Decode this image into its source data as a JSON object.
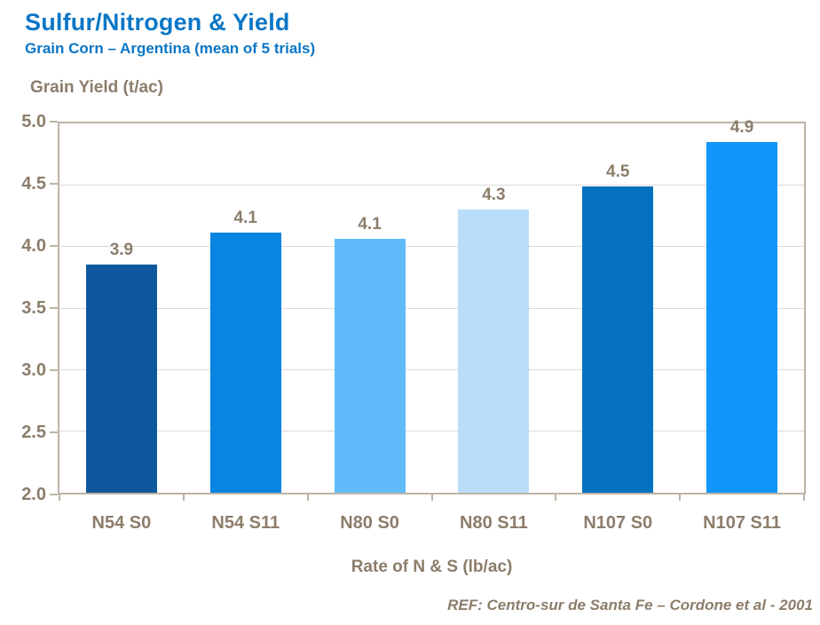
{
  "header": {
    "title": "Sulfur/Nitrogen & Yield",
    "subtitle": "Grain Corn – Argentina (mean of 5 trials)"
  },
  "chart_data": {
    "type": "bar",
    "title": "Sulfur/Nitrogen & Yield",
    "subtitle": "Grain Corn – Argentina (mean of 5 trials)",
    "y_axis_title": "Grain Yield (t/ac)",
    "x_axis_title": "Rate of N & S (lb/ac)",
    "categories": [
      "N54 S0",
      "N54 S11",
      "N80 S0",
      "N80 S11",
      "N107 S0",
      "N107 S11"
    ],
    "values": [
      3.85,
      4.11,
      4.06,
      4.3,
      4.49,
      4.85
    ],
    "data_labels": [
      "3.9",
      "4.1",
      "4.1",
      "4.3",
      "4.5",
      "4.9"
    ],
    "bar_colors": [
      "#0F589E",
      "#0884E2",
      "#63BAFB",
      "#B9DDFB",
      "#0471BE",
      "#1396FB"
    ],
    "ylim": [
      2.0,
      5.0
    ],
    "ytick_step": 0.5,
    "ytick_labels": [
      "5.0",
      "4.5",
      "4.0",
      "3.5",
      "3.0",
      "2.5",
      "2.0"
    ],
    "grid": true,
    "legend_position": "none"
  },
  "footer": {
    "reference": "REF: Centro-sur de Santa Fe – Cordone et al - 2001"
  },
  "colors": {
    "title_text": "#0B76C6",
    "axis_text": "#8C7D6B",
    "plot_border": "#BEB4A6",
    "gridline": "#D9D9D9",
    "background": "#FFFFFF"
  }
}
